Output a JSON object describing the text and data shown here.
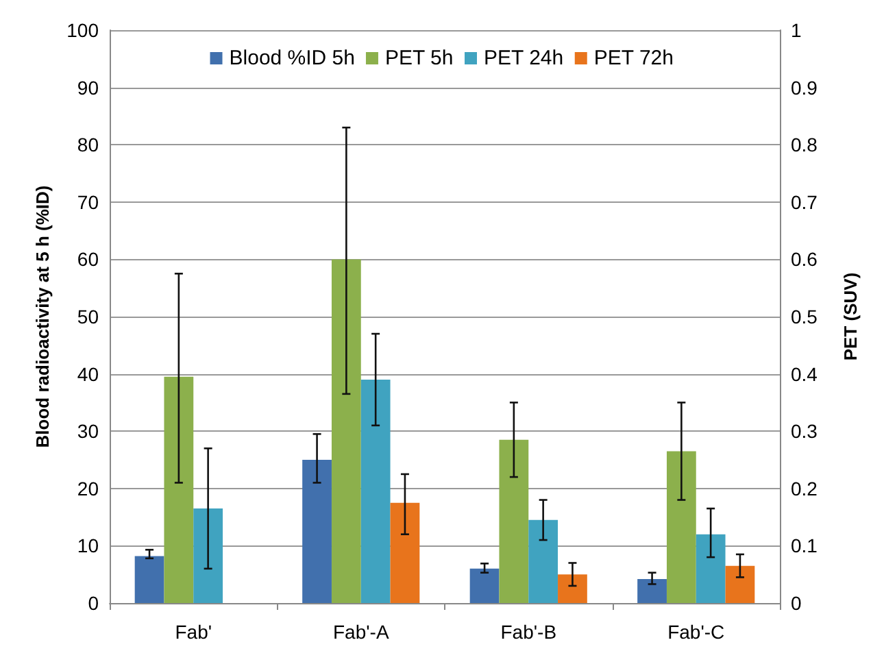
{
  "chart_data": {
    "type": "bar",
    "categories": [
      "Fab'",
      "Fab'-A",
      "Fab'-B",
      "Fab'-C"
    ],
    "ylabel": "Blood radioactivity at 5 h (%ID)",
    "y2label": "PET (SUV)",
    "ylim": [
      0,
      100
    ],
    "yticks": [
      0,
      10,
      20,
      30,
      40,
      50,
      60,
      70,
      80,
      90,
      100
    ],
    "y2lim": [
      0,
      1
    ],
    "y2ticks": [
      0,
      0.1,
      0.2,
      0.3,
      0.4,
      0.5,
      0.6,
      0.7,
      0.8,
      0.9,
      1
    ],
    "grid": "y",
    "legend": "top",
    "series": [
      {
        "name": "Blood %ID 5h",
        "color": "#4170ad",
        "values": [
          8.2,
          25,
          6,
          4.2
        ],
        "errors": [
          [
            7.8,
            9.3
          ],
          [
            21,
            29.5
          ],
          [
            5.3,
            6.9
          ],
          [
            3.3,
            5.3
          ]
        ]
      },
      {
        "name": "PET 5h",
        "color": "#8cb04c",
        "axis": "y2",
        "values": [
          0.395,
          0.6,
          0.285,
          0.265
        ],
        "errors": [
          [
            0.21,
            0.575
          ],
          [
            0.365,
            0.83
          ],
          [
            0.22,
            0.35
          ],
          [
            0.18,
            0.35
          ]
        ]
      },
      {
        "name": "PET 24h",
        "color": "#40a3c0",
        "axis": "y2",
        "values": [
          0.165,
          0.39,
          0.145,
          0.12
        ],
        "errors": [
          [
            0.06,
            0.27
          ],
          [
            0.31,
            0.47
          ],
          [
            0.11,
            0.18
          ],
          [
            0.08,
            0.165
          ]
        ]
      },
      {
        "name": "PET 72h",
        "color": "#e8741c",
        "axis": "y2",
        "values": [
          null,
          0.175,
          0.05,
          0.065
        ],
        "errors": [
          null,
          [
            0.12,
            0.225
          ],
          [
            0.03,
            0.07
          ],
          [
            0.045,
            0.085
          ]
        ]
      }
    ]
  }
}
